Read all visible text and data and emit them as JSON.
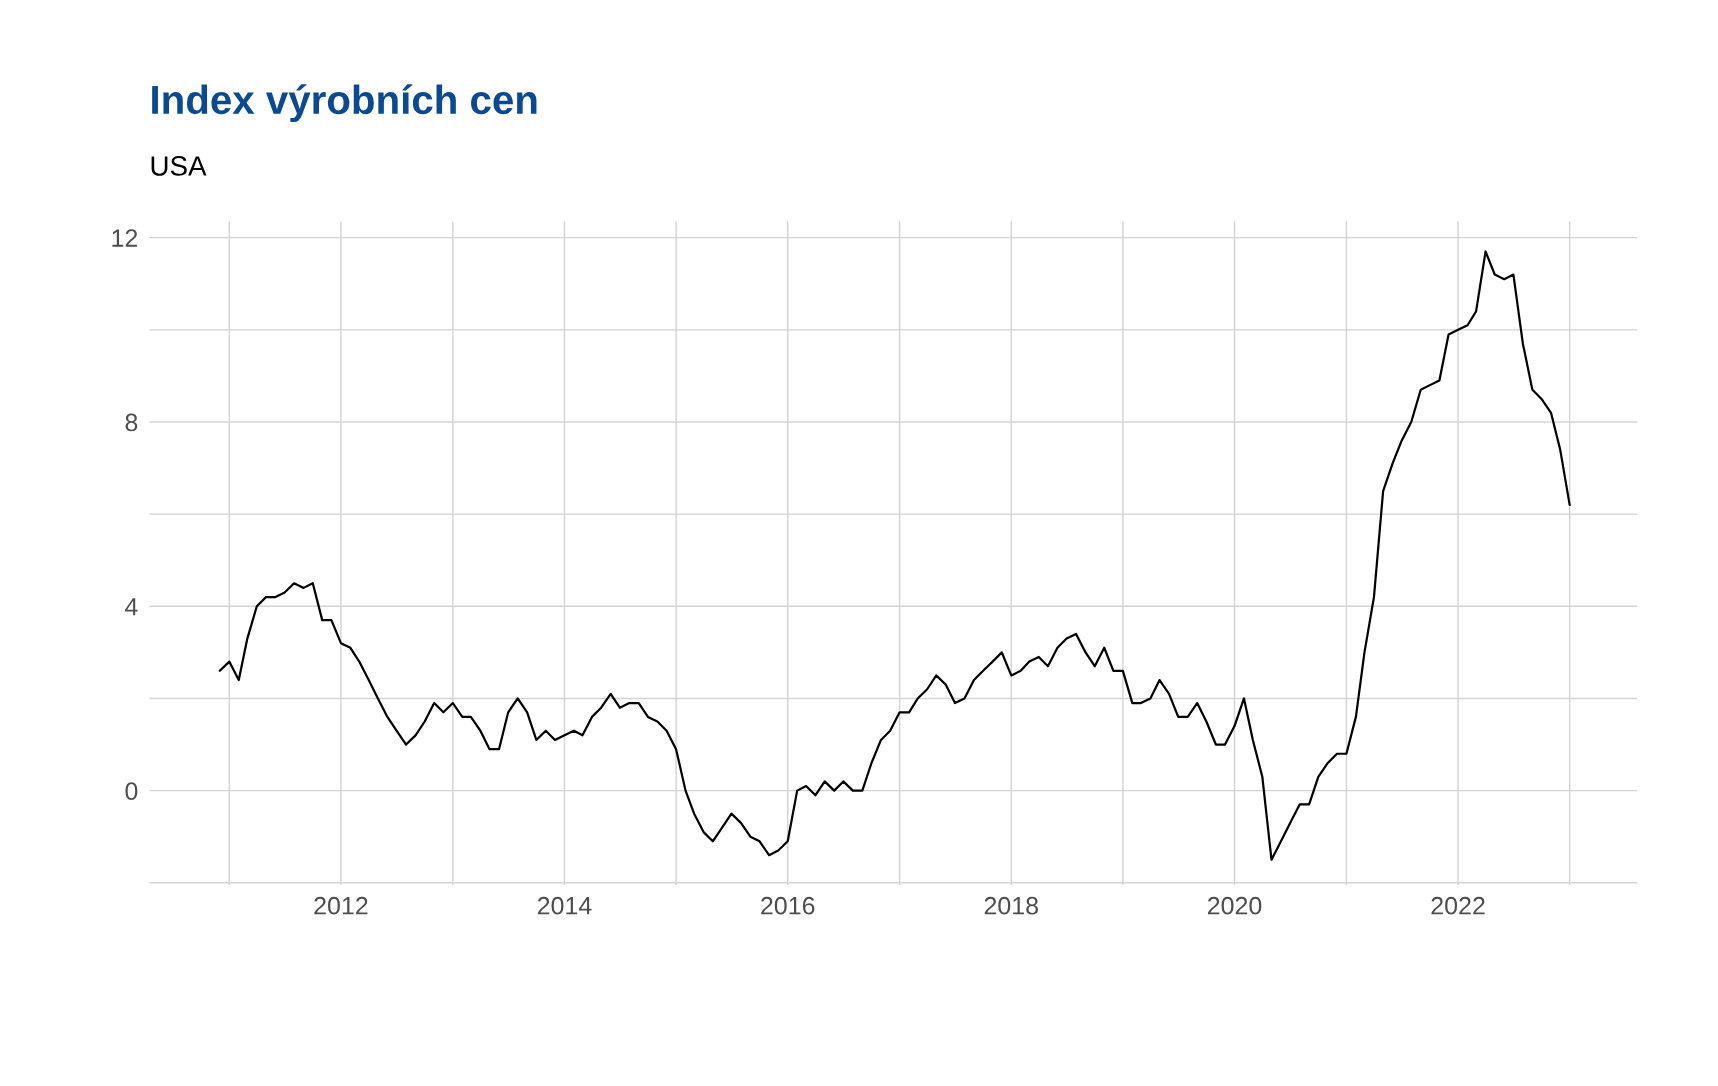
{
  "chart_data": {
    "type": "line",
    "title": "Index výrobních cen",
    "subtitle": "USA",
    "x": [
      "2010-12",
      "2011-01",
      "2011-02",
      "2011-03",
      "2011-04",
      "2011-05",
      "2011-06",
      "2011-07",
      "2011-08",
      "2011-09",
      "2011-10",
      "2011-11",
      "2011-12",
      "2012-01",
      "2012-02",
      "2012-03",
      "2012-04",
      "2012-05",
      "2012-06",
      "2012-07",
      "2012-08",
      "2012-09",
      "2012-10",
      "2012-11",
      "2012-12",
      "2013-01",
      "2013-02",
      "2013-03",
      "2013-04",
      "2013-05",
      "2013-06",
      "2013-07",
      "2013-08",
      "2013-09",
      "2013-10",
      "2013-11",
      "2013-12",
      "2014-01",
      "2014-02",
      "2014-03",
      "2014-04",
      "2014-05",
      "2014-06",
      "2014-07",
      "2014-08",
      "2014-09",
      "2014-10",
      "2014-11",
      "2014-12",
      "2015-01",
      "2015-02",
      "2015-03",
      "2015-04",
      "2015-05",
      "2015-06",
      "2015-07",
      "2015-08",
      "2015-09",
      "2015-10",
      "2015-11",
      "2015-12",
      "2016-01",
      "2016-02",
      "2016-03",
      "2016-04",
      "2016-05",
      "2016-06",
      "2016-07",
      "2016-08",
      "2016-09",
      "2016-10",
      "2016-11",
      "2016-12",
      "2017-01",
      "2017-02",
      "2017-03",
      "2017-04",
      "2017-05",
      "2017-06",
      "2017-07",
      "2017-08",
      "2017-09",
      "2017-10",
      "2017-11",
      "2017-12",
      "2018-01",
      "2018-02",
      "2018-03",
      "2018-04",
      "2018-05",
      "2018-06",
      "2018-07",
      "2018-08",
      "2018-09",
      "2018-10",
      "2018-11",
      "2018-12",
      "2019-01",
      "2019-02",
      "2019-03",
      "2019-04",
      "2019-05",
      "2019-06",
      "2019-07",
      "2019-08",
      "2019-09",
      "2019-10",
      "2019-11",
      "2019-12",
      "2020-01",
      "2020-02",
      "2020-03",
      "2020-04",
      "2020-05",
      "2020-06",
      "2020-07",
      "2020-08",
      "2020-09",
      "2020-10",
      "2020-11",
      "2020-12",
      "2021-01",
      "2021-02",
      "2021-03",
      "2021-04",
      "2021-05",
      "2021-06",
      "2021-07",
      "2021-08",
      "2021-09",
      "2021-10",
      "2021-11",
      "2021-12",
      "2022-01",
      "2022-02",
      "2022-03",
      "2022-04",
      "2022-05",
      "2022-06",
      "2022-07",
      "2022-08",
      "2022-09",
      "2022-10",
      "2022-11",
      "2022-12",
      "2023-01"
    ],
    "series": [
      {
        "color": "#000000",
        "values": [
          2.6,
          2.8,
          2.4,
          3.3,
          4.0,
          4.2,
          4.2,
          4.3,
          4.5,
          4.4,
          4.5,
          3.7,
          3.7,
          3.2,
          3.1,
          2.8,
          2.4,
          2.0,
          1.6,
          1.3,
          1.0,
          1.2,
          1.5,
          1.9,
          1.7,
          1.9,
          1.6,
          1.6,
          1.3,
          0.9,
          0.9,
          1.7,
          2.0,
          1.7,
          1.1,
          1.3,
          1.1,
          1.2,
          1.3,
          1.2,
          1.6,
          1.8,
          2.1,
          1.8,
          1.9,
          1.9,
          1.6,
          1.5,
          1.3,
          0.9,
          0.0,
          -0.5,
          -0.9,
          -1.1,
          -0.8,
          -0.5,
          -0.7,
          -1.0,
          -1.1,
          -1.4,
          -1.3,
          -1.1,
          0.0,
          0.1,
          -0.1,
          0.2,
          0.0,
          0.2,
          0.0,
          0.0,
          0.6,
          1.1,
          1.3,
          1.7,
          1.7,
          2.0,
          2.2,
          2.5,
          2.3,
          1.9,
          2.0,
          2.4,
          2.6,
          2.8,
          3.0,
          2.5,
          2.6,
          2.8,
          2.9,
          2.7,
          3.1,
          3.3,
          3.4,
          3.0,
          2.7,
          3.1,
          2.6,
          2.6,
          1.9,
          1.9,
          2.0,
          2.4,
          2.1,
          1.6,
          1.6,
          1.9,
          1.5,
          1.0,
          1.0,
          1.4,
          2.0,
          1.1,
          0.3,
          -1.5,
          -1.1,
          -0.7,
          -0.3,
          -0.3,
          0.3,
          0.6,
          0.8,
          0.8,
          1.6,
          3.0,
          4.2,
          6.5,
          7.1,
          7.6,
          8.0,
          8.7,
          8.8,
          8.9,
          9.9,
          10.0,
          10.1,
          10.4,
          11.7,
          11.2,
          11.1,
          11.2,
          9.7,
          8.7,
          8.5,
          8.2,
          7.4,
          6.2
        ]
      }
    ],
    "xlim": [
      "2010-04-15",
      "2023-08-10"
    ],
    "ylim": [
      -2.05,
      12.35
    ],
    "xticks": [
      {
        "value": "2011",
        "label": null
      },
      "2012",
      {
        "value": "2013",
        "label": null
      },
      "2014",
      {
        "value": "2015",
        "label": null
      },
      "2016",
      {
        "value": "2017",
        "label": null
      },
      "2018",
      {
        "value": "2019",
        "label": null
      },
      "2020",
      {
        "value": "2021",
        "label": null
      },
      "2022",
      {
        "value": "2023",
        "label": null
      }
    ],
    "yticks": [
      {
        "value": -2,
        "label": null
      },
      0,
      {
        "value": 2,
        "label": null
      },
      4,
      {
        "value": 6,
        "label": null
      },
      8,
      {
        "value": 10,
        "label": null
      },
      12
    ],
    "grid": true,
    "marker": "none",
    "line_style": "solid"
  }
}
